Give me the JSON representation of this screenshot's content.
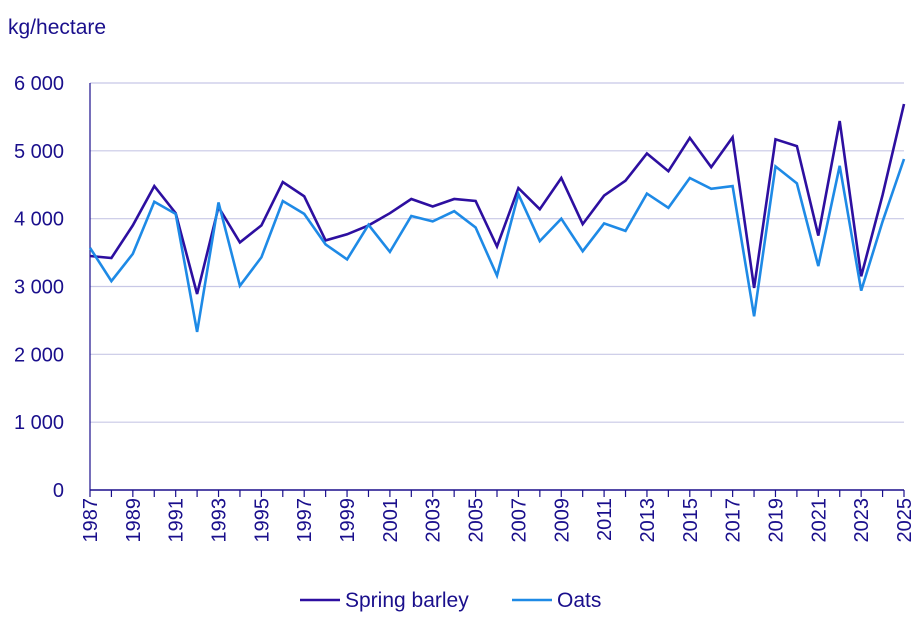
{
  "chart_data": {
    "type": "line",
    "ylabel": "kg/hectare",
    "ylim": [
      0,
      6000
    ],
    "yticks": [
      0,
      1000,
      2000,
      3000,
      4000,
      5000,
      6000
    ],
    "ytick_labels": [
      "0",
      "1 000",
      "2 000",
      "3 000",
      "4 000",
      "5 000",
      "6 000"
    ],
    "xlim": [
      1987,
      2025
    ],
    "xtick_labels": [
      "1987",
      "1989",
      "1991",
      "1993",
      "1995",
      "1997",
      "1999",
      "2001",
      "2003",
      "2005",
      "2007",
      "2009",
      "2011",
      "2013",
      "2015",
      "2017",
      "2019",
      "2021",
      "2023",
      "2025"
    ],
    "grid": "horizontal",
    "legend_position": "bottom",
    "x": [
      1987,
      1988,
      1989,
      1990,
      1991,
      1992,
      1993,
      1994,
      1995,
      1996,
      1997,
      1998,
      1999,
      2000,
      2001,
      2002,
      2003,
      2004,
      2005,
      2006,
      2007,
      2008,
      2009,
      2010,
      2011,
      2012,
      2013,
      2014,
      2015,
      2016,
      2017,
      2018,
      2019,
      2020,
      2021,
      2022,
      2023,
      2024,
      2025
    ],
    "series": [
      {
        "name": "Spring barley",
        "color": "#2d0fa0",
        "values": [
          3450,
          3420,
          3900,
          4480,
          4080,
          2890,
          4170,
          3650,
          3900,
          4540,
          4330,
          3680,
          3770,
          3900,
          4080,
          4290,
          4180,
          4290,
          4260,
          3590,
          4450,
          4140,
          4600,
          3920,
          4340,
          4560,
          4960,
          4700,
          5190,
          4760,
          5200,
          2980,
          5170,
          5070,
          3750,
          5440,
          3150,
          4350,
          5690
        ]
      },
      {
        "name": "Oats",
        "color": "#1e8ae6",
        "values": [
          3570,
          3080,
          3480,
          4250,
          4070,
          2330,
          4240,
          3010,
          3430,
          4260,
          4070,
          3620,
          3400,
          3910,
          3510,
          4040,
          3960,
          4110,
          3870,
          3160,
          4360,
          3670,
          4000,
          3520,
          3930,
          3820,
          4370,
          4160,
          4600,
          4440,
          4480,
          2560,
          4770,
          4520,
          3300,
          4780,
          2940,
          3960,
          4880
        ]
      }
    ]
  },
  "colors": {
    "axis_text": "#1a0f8c",
    "grid": "#c8c8e6",
    "axis_line": "#1a0f8c"
  }
}
